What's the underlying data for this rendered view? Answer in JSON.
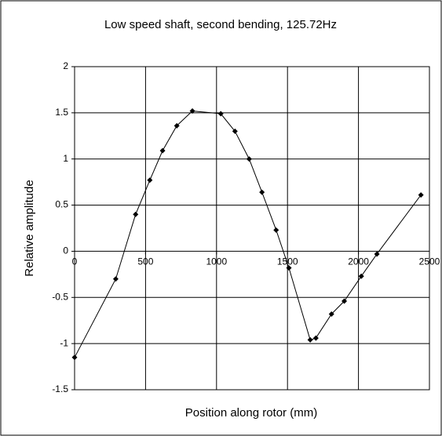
{
  "chart_data": {
    "type": "line",
    "title": "Low speed shaft, second bending, 125.72Hz",
    "xlabel": "Position along rotor (mm)",
    "ylabel": "Relative amplitude",
    "x": [
      0,
      290,
      430,
      530,
      620,
      720,
      830,
      1030,
      1130,
      1230,
      1320,
      1420,
      1510,
      1660,
      1700,
      1810,
      1900,
      2020,
      2130,
      2440
    ],
    "values": [
      -1.15,
      -0.3,
      0.4,
      0.77,
      1.09,
      1.36,
      1.52,
      1.49,
      1.3,
      1.0,
      0.64,
      0.23,
      -0.18,
      -0.96,
      -0.94,
      -0.68,
      -0.54,
      -0.27,
      -0.03,
      0.61
    ],
    "color": "#000000",
    "xlim": [
      0,
      2500
    ],
    "xticks": [
      0,
      500,
      1000,
      1500,
      2000,
      2500
    ],
    "ylim": [
      -1.5,
      2
    ],
    "yticks": [
      -1.5,
      -1,
      -0.5,
      0,
      0.5,
      1,
      1.5,
      2
    ],
    "grid": true
  }
}
